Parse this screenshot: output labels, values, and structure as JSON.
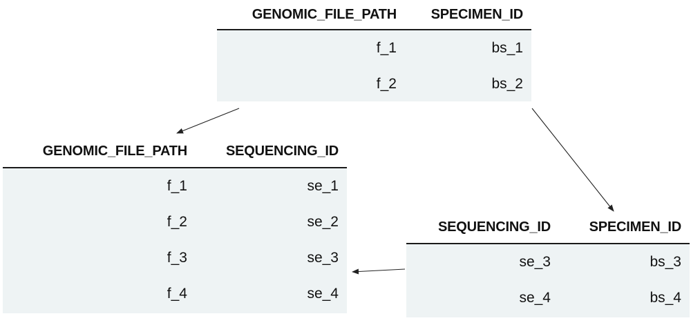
{
  "tables": [
    {
      "columns": [
        "GENOMIC_FILE_PATH",
        "SPECIMEN_ID"
      ],
      "rows": [
        [
          "f_1",
          "bs_1"
        ],
        [
          "f_2",
          "bs_2"
        ]
      ]
    },
    {
      "columns": [
        "GENOMIC_FILE_PATH",
        "SEQUENCING_ID"
      ],
      "rows": [
        [
          "f_1",
          "se_1"
        ],
        [
          "f_2",
          "se_2"
        ],
        [
          "f_3",
          "se_3"
        ],
        [
          "f_4",
          "se_4"
        ]
      ]
    },
    {
      "columns": [
        "SEQUENCING_ID",
        "SPECIMEN_ID"
      ],
      "rows": [
        [
          "se_3",
          "bs_3"
        ],
        [
          "se_4",
          "bs_4"
        ]
      ]
    }
  ],
  "colors": {
    "header_rule": "#1a1a1a",
    "body_fill": "#eef3f4",
    "arrow": "#222222"
  }
}
